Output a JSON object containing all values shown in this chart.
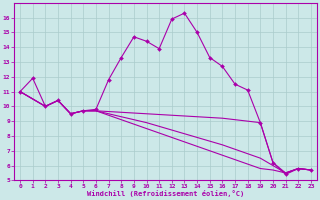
{
  "xlabel": "Windchill (Refroidissement éolien,°C)",
  "background_color": "#cce8e8",
  "grid_color": "#aacccc",
  "line_color": "#aa00aa",
  "xlim": [
    -0.5,
    23.5
  ],
  "ylim": [
    5,
    17
  ],
  "xticks": [
    0,
    1,
    2,
    3,
    4,
    5,
    6,
    7,
    8,
    9,
    10,
    11,
    12,
    13,
    14,
    15,
    16,
    17,
    18,
    19,
    20,
    21,
    22,
    23
  ],
  "yticks": [
    5,
    6,
    7,
    8,
    9,
    10,
    11,
    12,
    13,
    14,
    15,
    16
  ],
  "s1_x": [
    0,
    1,
    2,
    3,
    4,
    5,
    6,
    7,
    8,
    9,
    10,
    11,
    12,
    13,
    14,
    15,
    16,
    17,
    18,
    19,
    20,
    21,
    22,
    23
  ],
  "s1_y": [
    11.0,
    11.9,
    10.0,
    10.4,
    9.5,
    9.7,
    9.8,
    11.8,
    13.3,
    14.7,
    14.4,
    13.9,
    15.9,
    16.3,
    15.0,
    13.3,
    12.7,
    11.5,
    11.1,
    8.9,
    6.2,
    5.4,
    5.8,
    5.7
  ],
  "s2_x": [
    0,
    2,
    3,
    4,
    5,
    6,
    7,
    8,
    9,
    10,
    11,
    12,
    13,
    14,
    15,
    16,
    17,
    18,
    19,
    20,
    21,
    22,
    23
  ],
  "s2_y": [
    11.0,
    10.0,
    10.4,
    9.5,
    9.7,
    9.7,
    9.65,
    9.6,
    9.55,
    9.5,
    9.45,
    9.4,
    9.35,
    9.3,
    9.25,
    9.2,
    9.1,
    9.0,
    8.9,
    6.2,
    5.5,
    5.8,
    5.7
  ],
  "s3_x": [
    0,
    2,
    3,
    4,
    5,
    6,
    7,
    8,
    9,
    10,
    11,
    12,
    13,
    14,
    15,
    16,
    17,
    18,
    19,
    20,
    21,
    22,
    23
  ],
  "s3_y": [
    11.0,
    10.0,
    10.4,
    9.5,
    9.7,
    9.7,
    9.5,
    9.3,
    9.1,
    8.9,
    8.65,
    8.4,
    8.15,
    7.9,
    7.65,
    7.4,
    7.1,
    6.8,
    6.5,
    6.0,
    5.5,
    5.8,
    5.7
  ],
  "s4_x": [
    0,
    2,
    3,
    4,
    5,
    6,
    7,
    8,
    9,
    10,
    11,
    12,
    13,
    14,
    15,
    16,
    17,
    18,
    19,
    20,
    21,
    22,
    23
  ],
  "s4_y": [
    11.0,
    10.0,
    10.4,
    9.5,
    9.7,
    9.7,
    9.4,
    9.1,
    8.8,
    8.5,
    8.2,
    7.9,
    7.6,
    7.3,
    7.0,
    6.7,
    6.4,
    6.1,
    5.8,
    5.7,
    5.5,
    5.8,
    5.7
  ]
}
